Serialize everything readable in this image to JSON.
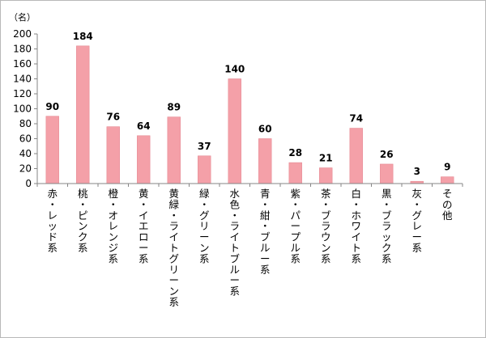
{
  "chart_data": {
    "type": "bar",
    "unit_label": "（名）",
    "categories": [
      "赤・レッド系",
      "桃・ピンク系",
      "橙・オレンジ系",
      "黄・イエロー系",
      "黄緑・ライトグリーン系",
      "緑・グリーン系",
      "水色・ライトブルー系",
      "青・紺・ブルー系",
      "紫・パープル系",
      "茶・ブラウン系",
      "白・ホワイト系",
      "黒・ブラック系",
      "灰・グレー系",
      "その他"
    ],
    "values": [
      90,
      184,
      76,
      64,
      89,
      37,
      140,
      60,
      28,
      21,
      74,
      26,
      3,
      9
    ],
    "ylim": [
      0,
      200
    ],
    "yticks": [
      "0",
      "20",
      "40",
      "60",
      "80",
      "100",
      "120",
      "140",
      "160",
      "180",
      "200"
    ],
    "grid": false,
    "legend": "none",
    "bar_color": "#f4a0a8",
    "bar_edge_color": "#e58892"
  }
}
